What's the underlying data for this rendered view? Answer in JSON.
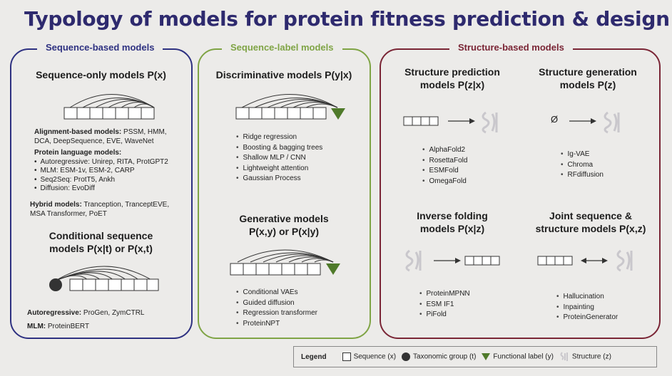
{
  "title": "Typology of models for protein fitness prediction & design",
  "sequence_panel": {
    "title": "Sequence-based models",
    "seq_only_heading": "Sequence-only models P(x)",
    "alignment_label": "Alignment-based models:",
    "alignment_text": "PSSM, HMM, DCA, DeepSequence, EVE, WaveNet",
    "plm_label": "Protein language models:",
    "plm_items": [
      "Autoregressive: Unirep, RITA, ProtGPT2",
      "MLM: ESM-1v, ESM-2, CARP",
      "Seq2Seq: ProtT5, Ankh",
      "Diffusion: EvoDiff"
    ],
    "hybrid_label": "Hybrid models:",
    "hybrid_text": "Tranception, TranceptEVE, MSA Transformer, PoET",
    "conditional_heading_1": "Conditional sequence",
    "conditional_heading_2": "models P(x|t) or P(x,t)",
    "autoreg_label": "Autoregressive:",
    "autoreg_text": "ProGen, ZymCTRL",
    "mlm_label": "MLM:",
    "mlm_text": "ProteinBERT"
  },
  "label_panel": {
    "title": "Sequence-label models",
    "disc_heading": "Discriminative models P(y|x)",
    "disc_items": [
      "Ridge regression",
      "Boosting & bagging trees",
      "Shallow MLP / CNN",
      "Lightweight attention",
      "Gaussian Process"
    ],
    "gen_heading_1": "Generative models",
    "gen_heading_2": "P(x,y) or P(x|y)",
    "gen_items": [
      "Conditional VAEs",
      "Guided diffusion",
      "Regression transformer",
      "ProteinNPT"
    ]
  },
  "structure_panel": {
    "title": "Structure-based models",
    "pred_heading_1": "Structure prediction",
    "pred_heading_2": "models P(z|x)",
    "pred_items": [
      "AlphaFold2",
      "RosettaFold",
      "ESMFold",
      "OmegaFold"
    ],
    "gen_heading_1": "Structure generation",
    "gen_heading_2": "models P(z)",
    "empty_symbol": "Ø",
    "gen_items": [
      "Ig-VAE",
      "Chroma",
      "RFdiffusion"
    ],
    "inv_heading_1": "Inverse folding",
    "inv_heading_2": "models P(x|z)",
    "inv_items": [
      "ProteinMPNN",
      "ESM IF1",
      "PiFold"
    ],
    "joint_heading_1": "Joint sequence &",
    "joint_heading_2": "structure models P(x,z)",
    "joint_items": [
      "Hallucination",
      "Inpainting",
      "ProteinGenerator"
    ]
  },
  "legend": {
    "title": "Legend",
    "sequence": "Sequence (x)",
    "taxonomic": "Taxonomic group (t)",
    "functional": "Functional label (y)",
    "structure": "Structure (z)"
  },
  "colors": {
    "title": "#2e2a6e",
    "sequence_border": "#2e3181",
    "label_border": "#7fa445",
    "structure_border": "#7a2535",
    "label_triangle": "#4f7a2a"
  }
}
